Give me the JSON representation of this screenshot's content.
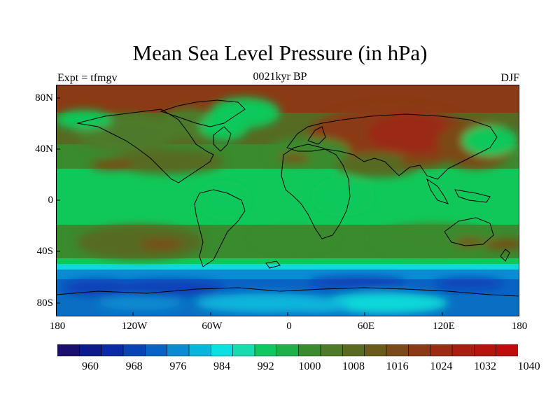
{
  "title": "Mean Sea Level Pressure (in hPa)",
  "subtitle": "0021kyr BP",
  "left_label": "Expt = tfmgv",
  "right_label": "DJF",
  "y_ticks": [
    "80N",
    "40N",
    "0",
    "40S",
    "80S"
  ],
  "x_ticks": [
    "180",
    "120W",
    "60W",
    "0",
    "60E",
    "120E",
    "180"
  ],
  "colorbar": {
    "labels": [
      "960",
      "968",
      "976",
      "984",
      "992",
      "1000",
      "1008",
      "1016",
      "1024",
      "1032",
      "1040"
    ],
    "colors": [
      "#1b0f6e",
      "#0c1a8c",
      "#0a2aa8",
      "#0a43b8",
      "#0a63c4",
      "#0a8cd2",
      "#08b6dc",
      "#0de0e0",
      "#16dcb0",
      "#10c860",
      "#1fb04a",
      "#3a8a2e",
      "#4e7a2a",
      "#5a6a20",
      "#6a5a1c",
      "#7a4a18",
      "#8a3a14",
      "#9a2c12",
      "#aa1e10",
      "#b8140e",
      "#c00c0c"
    ]
  },
  "colors": {
    "deep_ocean_low": "#0a3a9e",
    "mid_low": "#0a6fc2",
    "cyan": "#10d8d8",
    "green_bright": "#10c85a",
    "green_mid": "#3a8a2e",
    "olive": "#566a22",
    "brown": "#7a4a18",
    "red_brown": "#9a2c12"
  }
}
